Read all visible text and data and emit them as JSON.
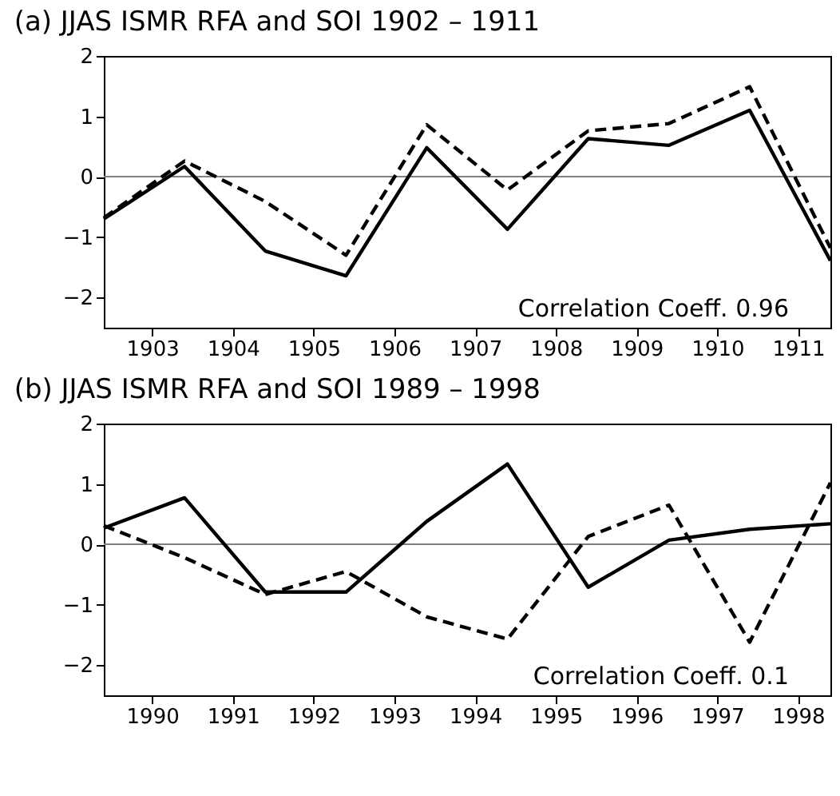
{
  "chart_data": [
    {
      "type": "line",
      "title": "(a) JJAS ISMR RFA and SOI 1902 – 1911",
      "x": [
        1902.4,
        1903.4,
        1904.4,
        1905.4,
        1906.4,
        1907.4,
        1908.4,
        1909.4,
        1910.4,
        1911.4
      ],
      "series": [
        {
          "color": "#000000",
          "line_style": "solid",
          "values": [
            -0.7,
            0.17,
            -1.23,
            -1.64,
            0.48,
            -0.87,
            0.63,
            0.52,
            1.1,
            -1.39
          ]
        },
        {
          "color": "#000000",
          "line_style": "dashed",
          "values": [
            -0.68,
            0.26,
            -0.41,
            -1.3,
            0.86,
            -0.22,
            0.76,
            0.88,
            1.49,
            -1.18
          ]
        }
      ],
      "xlim": [
        1902.4,
        1911.4
      ],
      "xticks": [
        1903,
        1904,
        1905,
        1906,
        1907,
        1908,
        1909,
        1910,
        1911
      ],
      "ylim": [
        -2.5,
        2
      ],
      "yticks": [
        -2,
        -1,
        0,
        1,
        2
      ],
      "ref_lines": [
        {
          "axis": "y",
          "value": 0,
          "color": "#808080"
        }
      ],
      "annotations": [
        "Correlation Coeff. 0.96"
      ],
      "grid": false,
      "marker": "none"
    },
    {
      "type": "line",
      "title": "(b) JJAS ISMR RFA and SOI 1989 – 1998",
      "x": [
        1989.4,
        1990.4,
        1991.4,
        1992.4,
        1993.4,
        1994.4,
        1995.4,
        1996.4,
        1997.4,
        1998.4
      ],
      "series": [
        {
          "color": "#000000",
          "line_style": "solid",
          "values": [
            0.27,
            0.77,
            -0.79,
            -0.79,
            0.38,
            1.33,
            -0.71,
            0.07,
            0.25,
            0.34
          ]
        },
        {
          "color": "#000000",
          "line_style": "dashed",
          "values": [
            0.31,
            -0.22,
            -0.83,
            -0.45,
            -1.2,
            -1.57,
            0.13,
            0.65,
            -1.62,
            1.02
          ]
        }
      ],
      "xlim": [
        1989.4,
        1998.4
      ],
      "xticks": [
        1990,
        1991,
        1992,
        1993,
        1994,
        1995,
        1996,
        1997,
        1998
      ],
      "ylim": [
        -2.5,
        2
      ],
      "yticks": [
        -2,
        -1,
        0,
        1,
        2
      ],
      "ref_lines": [
        {
          "axis": "y",
          "value": 0,
          "color": "#808080"
        }
      ],
      "annotations": [
        "Correlation Coeff. 0.1"
      ],
      "grid": false,
      "marker": "none"
    }
  ]
}
